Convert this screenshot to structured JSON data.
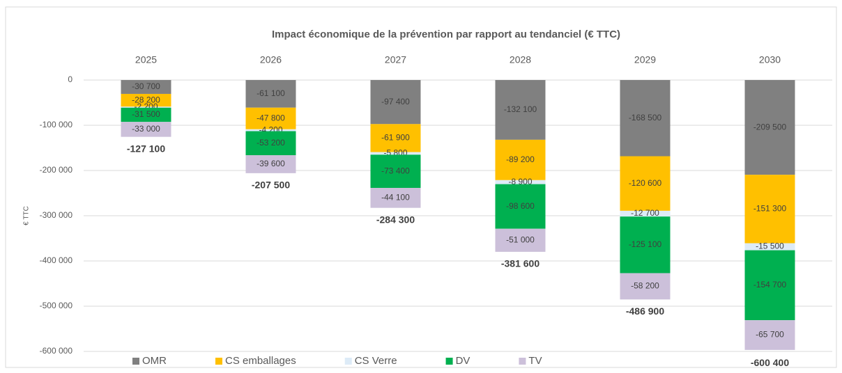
{
  "chart_data": {
    "type": "stacked_bar",
    "title": "Impact économique de la prévention par rapport au tendanciel (€ TTC)",
    "y_label": "€ TTC",
    "categories": [
      "2025",
      "2026",
      "2027",
      "2028",
      "2029",
      "2030"
    ],
    "series": [
      {
        "name": "OMR",
        "color": "#808080",
        "values": [
          -30700,
          -61100,
          -97400,
          -132100,
          -168500,
          -209500
        ],
        "value_labels": [
          "-30 700",
          "-61 100",
          "-97 400",
          "-132 100",
          "-168 500",
          "-209 500"
        ]
      },
      {
        "name": "CS emballages",
        "color": "#FFC000",
        "values": [
          -28200,
          -47800,
          -61900,
          -89200,
          -120600,
          -151300
        ],
        "value_labels": [
          "-28 200",
          "-47 800",
          "-61 900",
          "-89 200",
          "-120 600",
          "-151 300"
        ]
      },
      {
        "name": "CS Verre",
        "color": "#DDEBF7",
        "values": [
          -2200,
          -4200,
          -5800,
          -8900,
          -12700,
          -15500
        ],
        "value_labels": [
          "-2 200",
          "-4 200",
          "-5 800",
          "-8 900",
          "-12 700",
          "-15 500"
        ]
      },
      {
        "name": "DV",
        "color": "#00B050",
        "values": [
          -31500,
          -53200,
          -73400,
          -98600,
          -125100,
          -154700
        ],
        "value_labels": [
          "-31 500",
          "-53 200",
          "-73 400",
          "-98 600",
          "-125 100",
          "-154 700"
        ]
      },
      {
        "name": "TV",
        "color": "#CCC0DA",
        "values": [
          -33000,
          -39600,
          -44100,
          -51000,
          -58200,
          -65700
        ],
        "value_labels": [
          "-33 000",
          "-39 600",
          "-44 100",
          "-51 000",
          "-58 200",
          "-65 700"
        ]
      }
    ],
    "totals": {
      "values": [
        -127100,
        -207500,
        -284300,
        -381600,
        -486900,
        -600400
      ],
      "value_labels": [
        "-127 100",
        "-207 500",
        "-284 300",
        "-381 600",
        "-486 900",
        "-600 400"
      ]
    },
    "ylim": [
      -600000,
      0
    ],
    "yticks": [
      {
        "value": 0,
        "label": "0"
      },
      {
        "value": -100000,
        "label": "-100 000"
      },
      {
        "value": -200000,
        "label": "-200 000"
      },
      {
        "value": -300000,
        "label": "-300 000"
      },
      {
        "value": -400000,
        "label": "-400 000"
      },
      {
        "value": -500000,
        "label": "-500 000"
      },
      {
        "value": -600000,
        "label": "-600 000"
      }
    ],
    "grid": true,
    "legend": "bottom"
  }
}
